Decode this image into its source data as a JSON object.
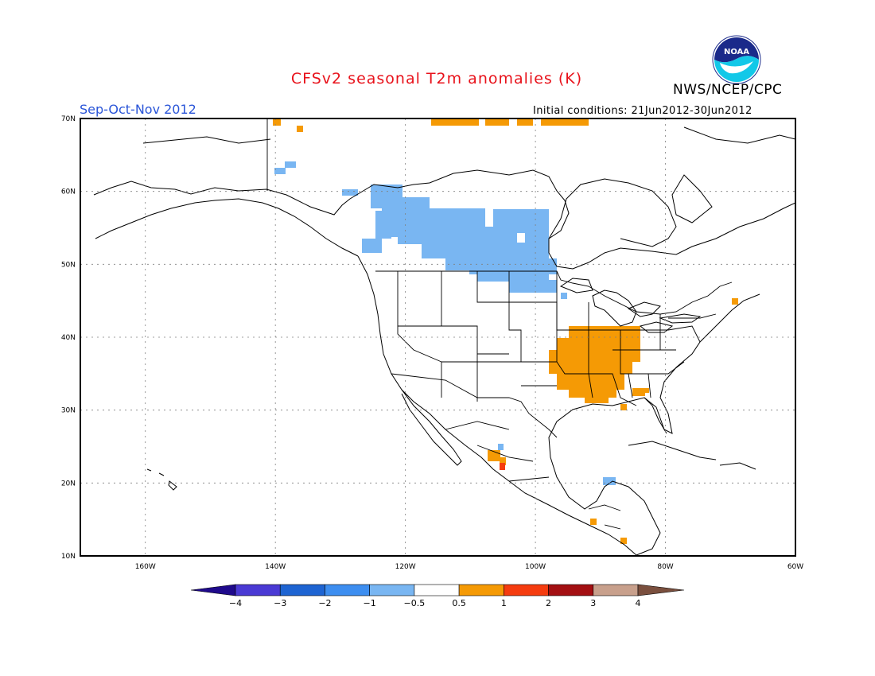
{
  "title": "CFSv2 seasonal T2m anomalies (K)",
  "agency": "NWS/NCEP/CPC",
  "logo_text": "NOAA",
  "season": "Sep-Oct-Nov 2012",
  "initial_conditions": "Initial conditions: 21Jun2012-30Jun2012",
  "map": {
    "region": "North America",
    "projection": "lat-lon",
    "lon_range": [
      -170,
      -60
    ],
    "lat_range": [
      10,
      70
    ],
    "grid": "dotted",
    "lon_ticks": [
      "160W",
      "140W",
      "120W",
      "100W",
      "80W",
      "60W"
    ],
    "lat_ticks": [
      "10N",
      "20N",
      "30N",
      "40N",
      "50N",
      "60N",
      "70N"
    ]
  },
  "colorbar": {
    "labels": [
      "-4",
      "-3",
      "-2",
      "-1",
      "-0.5",
      "0.5",
      "1",
      "2",
      "3",
      "4"
    ],
    "colors": [
      "#1f0a8c",
      "#4a3ad4",
      "#1e64d2",
      "#3d8ef0",
      "#79b6f2",
      "#ffffff",
      "#f59a05",
      "#f53c0f",
      "#a30f12",
      "#c8a08c",
      "#7a4f3e"
    ]
  },
  "anomalies": {
    "cool_color": "#79b6f2",
    "warm_color": "#f59a05",
    "hot_color": "#f53c0f"
  }
}
